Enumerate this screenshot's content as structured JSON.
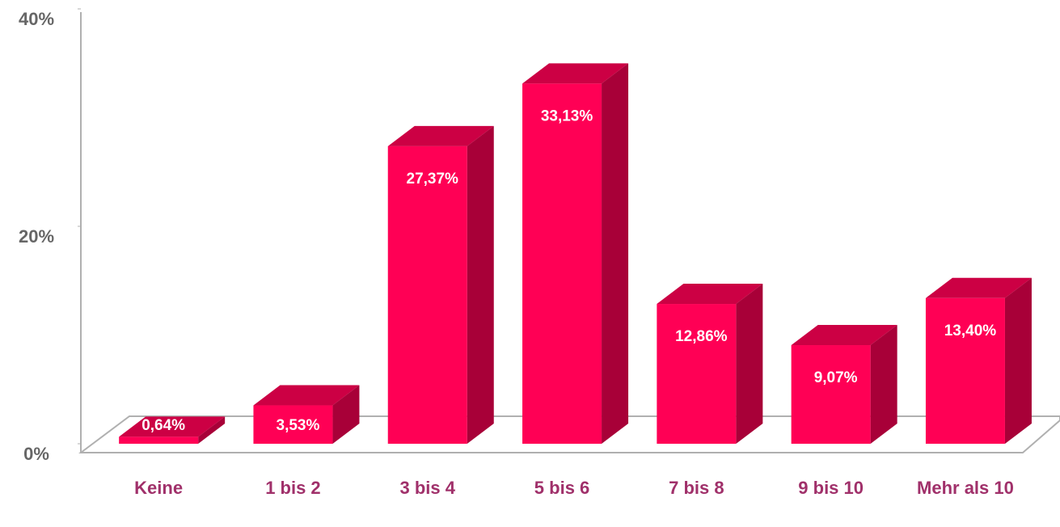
{
  "chart_data": {
    "type": "bar",
    "categories": [
      "Keine",
      "1 bis 2",
      "3 bis 4",
      "5 bis 6",
      "7 bis 8",
      "9 bis 10",
      "Mehr als 10"
    ],
    "values": [
      0.64,
      3.53,
      27.37,
      33.13,
      12.86,
      9.07,
      13.4
    ],
    "value_labels": [
      "0,64%",
      "3,53%",
      "27,37%",
      "33,13%",
      "12,86%",
      "9,07%",
      "13,40%"
    ],
    "color": "#ff0055",
    "ylim": [
      0,
      40
    ],
    "yticks": [
      {
        "value": 0,
        "label": "0%"
      },
      {
        "value": 20,
        "label": "20%"
      },
      {
        "value": 40,
        "label": "40%"
      }
    ]
  }
}
